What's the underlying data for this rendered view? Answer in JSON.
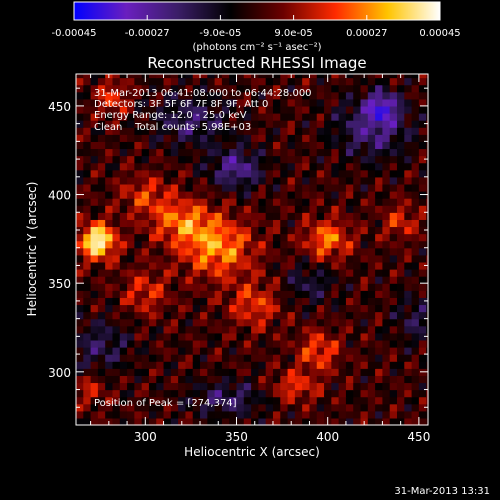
{
  "chart_data": {
    "type": "heatmap",
    "title": "Reconstructed RHESSI Image",
    "xlabel": "Heliocentric X (arcsec)",
    "ylabel": "Heliocentric Y (arcsec)",
    "xlim": [
      262,
      455
    ],
    "ylim": [
      270,
      468
    ],
    "xticks": [
      "300",
      "350",
      "400",
      "450"
    ],
    "yticks": [
      "300",
      "350",
      "400",
      "450"
    ],
    "colorbar": {
      "range": [
        -0.00045,
        0.00045
      ],
      "ticks": [
        "-0.00045",
        "-0.00027",
        "-9.0e-05",
        "9.0e-05",
        "0.00027",
        "0.00045"
      ],
      "unit": "(photons cm⁻² s⁻¹ asec⁻²)",
      "colormap": [
        "#0000ff",
        "#6a1fbf",
        "#3a1d66",
        "#000000",
        "#6b0000",
        "#ff2a00",
        "#ffc400",
        "#ffffff"
      ]
    },
    "annotations": [
      "31-Mar-2013 06:41:08.000 to 06:44:28.000",
      "Detectors: 3F 5F 6F 7F 8F 9F, Att 0",
      "Energy Range: 12.0 - 25.0 keV",
      "Clean    Total counts: 5.98E+03"
    ],
    "peak_label": "Position of Peak = [274,374]",
    "peak": [
      274,
      374
    ],
    "bright_sources": [
      {
        "x": 274,
        "y": 374,
        "level": 1.0,
        "sx": 7,
        "sy": 7
      },
      {
        "x": 340,
        "y": 370,
        "level": 0.6,
        "sx": 14,
        "sy": 12
      },
      {
        "x": 400,
        "y": 375,
        "level": 0.55,
        "sx": 9,
        "sy": 8
      },
      {
        "x": 320,
        "y": 385,
        "level": 0.5,
        "sx": 12,
        "sy": 9
      },
      {
        "x": 300,
        "y": 400,
        "level": 0.35,
        "sx": 10,
        "sy": 8
      },
      {
        "x": 282,
        "y": 455,
        "level": 0.4,
        "sx": 6,
        "sy": 7
      },
      {
        "x": 300,
        "y": 345,
        "level": 0.35,
        "sx": 9,
        "sy": 9
      },
      {
        "x": 360,
        "y": 338,
        "level": 0.4,
        "sx": 10,
        "sy": 9
      },
      {
        "x": 395,
        "y": 312,
        "level": 0.45,
        "sx": 8,
        "sy": 8
      },
      {
        "x": 440,
        "y": 385,
        "level": 0.35,
        "sx": 7,
        "sy": 7
      },
      {
        "x": 382,
        "y": 292,
        "level": 0.4,
        "sx": 9,
        "sy": 6
      },
      {
        "x": 270,
        "y": 290,
        "level": 0.3,
        "sx": 6,
        "sy": 6
      }
    ],
    "dark_sources": [
      {
        "x": 350,
        "y": 415,
        "level": -0.55,
        "sx": 10,
        "sy": 8
      },
      {
        "x": 425,
        "y": 438,
        "level": -0.5,
        "sx": 14,
        "sy": 12
      },
      {
        "x": 430,
        "y": 450,
        "level": -0.6,
        "sx": 6,
        "sy": 6
      },
      {
        "x": 275,
        "y": 315,
        "level": -0.35,
        "sx": 12,
        "sy": 10
      },
      {
        "x": 345,
        "y": 285,
        "level": -0.4,
        "sx": 14,
        "sy": 7
      },
      {
        "x": 325,
        "y": 442,
        "level": -0.4,
        "sx": 14,
        "sy": 10
      },
      {
        "x": 390,
        "y": 350,
        "level": -0.3,
        "sx": 10,
        "sy": 8
      },
      {
        "x": 448,
        "y": 330,
        "level": -0.3,
        "sx": 8,
        "sy": 10
      }
    ]
  },
  "footer": {
    "timestamp": "31-Mar-2013 13:31"
  }
}
